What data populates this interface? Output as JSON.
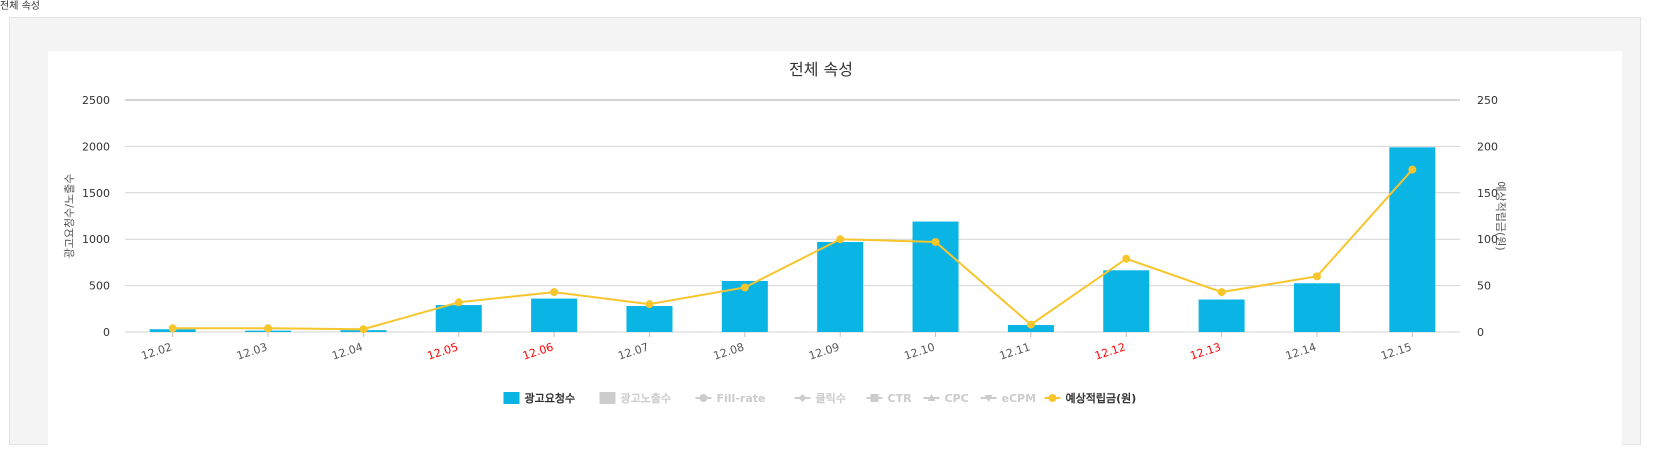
{
  "chart_data": {
    "type": "bar",
    "title": "전체 속성",
    "categories": [
      "12.02",
      "12.03",
      "12.04",
      "12.05",
      "12.06",
      "12.07",
      "12.08",
      "12.09",
      "12.10",
      "12.11",
      "12.12",
      "12.13",
      "12.14",
      "12.15"
    ],
    "red_categories": [
      "12.05",
      "12.06",
      "12.12",
      "12.13"
    ],
    "ylabel_left": "광고요청수/노출수",
    "ylabel_right": "예상적립금(원)",
    "ylim_left": [
      0,
      2500
    ],
    "ylim_right": [
      0,
      250
    ],
    "yticks_left": [
      0,
      500,
      1000,
      1500,
      2000,
      2500
    ],
    "yticks_right": [
      0,
      50,
      100,
      150,
      200,
      250
    ],
    "grid": true,
    "legend_placement": "bottom-center",
    "series": [
      {
        "name": "광고요청수",
        "kind": "bar",
        "axis": "left",
        "color": "#0ab4e4",
        "active": true,
        "values": [
          30,
          15,
          20,
          290,
          360,
          280,
          550,
          970,
          1190,
          75,
          665,
          350,
          525,
          1990
        ]
      },
      {
        "name": "예상적립금(원)",
        "kind": "line",
        "axis": "right",
        "color": "#f7c52c",
        "active": true,
        "values": [
          4,
          4,
          3,
          32,
          43,
          30,
          48,
          100,
          97,
          8,
          79,
          43,
          60,
          175
        ]
      }
    ],
    "legend": [
      {
        "name": "광고요청수",
        "marker": "bar",
        "color": "#0ab4e4",
        "active": true
      },
      {
        "name": "광고노출수",
        "marker": "bar",
        "color": "#cccccc",
        "active": false
      },
      {
        "name": "Fill-rate",
        "marker": "circle",
        "color": "#cccccc",
        "active": false
      },
      {
        "name": "클릭수",
        "marker": "diamond",
        "color": "#cccccc",
        "active": false
      },
      {
        "name": "CTR",
        "marker": "square",
        "color": "#cccccc",
        "active": false
      },
      {
        "name": "CPC",
        "marker": "triangle",
        "color": "#cccccc",
        "active": false
      },
      {
        "name": "eCPM",
        "marker": "triangle-down",
        "color": "#cccccc",
        "active": false
      },
      {
        "name": "예상적립금(원)",
        "marker": "circle",
        "color": "#f7c52c",
        "active": true
      }
    ]
  },
  "page": {
    "top_label": "전체 속성"
  }
}
